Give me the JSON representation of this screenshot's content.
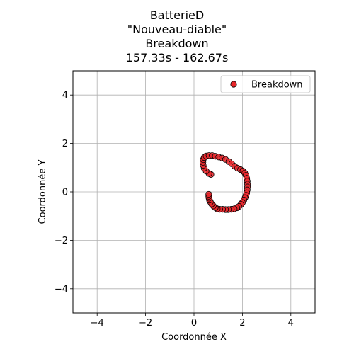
{
  "chart_data": {
    "type": "scatter",
    "title_lines": [
      "BatterieD",
      "\"Nouveau-diable\"",
      "Breakdown",
      "157.33s - 162.67s"
    ],
    "xlabel": "Coordonnée X",
    "ylabel": "Coordonnée Y",
    "xlim": [
      -5,
      5
    ],
    "ylim": [
      -5,
      5
    ],
    "xticks": [
      -4,
      -2,
      0,
      2,
      4
    ],
    "yticks": [
      -4,
      -2,
      0,
      2,
      4
    ],
    "xtick_labels": [
      "−4",
      "−2",
      "0",
      "2",
      "4"
    ],
    "ytick_labels": [
      "−4",
      "−2",
      "0",
      "2",
      "4"
    ],
    "grid": true,
    "legend_position": "top-right",
    "series": [
      {
        "name": "Breakdown",
        "color": "#e8262a",
        "edgecolor": "#000000",
        "points": [
          [
            0.7,
            0.72
          ],
          [
            0.62,
            0.76
          ],
          [
            0.5,
            0.86
          ],
          [
            0.42,
            0.98
          ],
          [
            0.38,
            1.1
          ],
          [
            0.37,
            1.22
          ],
          [
            0.38,
            1.33
          ],
          [
            0.42,
            1.42
          ],
          [
            0.5,
            1.48
          ],
          [
            0.62,
            1.5
          ],
          [
            0.75,
            1.5
          ],
          [
            0.88,
            1.47
          ],
          [
            1.02,
            1.44
          ],
          [
            1.16,
            1.4
          ],
          [
            1.3,
            1.34
          ],
          [
            1.44,
            1.25
          ],
          [
            1.56,
            1.16
          ],
          [
            1.68,
            1.06
          ],
          [
            1.8,
            0.98
          ],
          [
            1.92,
            0.92
          ],
          [
            2.02,
            0.86
          ],
          [
            2.1,
            0.78
          ],
          [
            2.15,
            0.68
          ],
          [
            2.18,
            0.56
          ],
          [
            2.2,
            0.44
          ],
          [
            2.21,
            0.32
          ],
          [
            2.21,
            0.2
          ],
          [
            2.2,
            0.08
          ],
          [
            2.18,
            -0.04
          ],
          [
            2.15,
            -0.14
          ],
          [
            2.11,
            -0.24
          ],
          [
            2.06,
            -0.34
          ],
          [
            2.0,
            -0.44
          ],
          [
            1.94,
            -0.52
          ],
          [
            1.86,
            -0.6
          ],
          [
            1.77,
            -0.66
          ],
          [
            1.66,
            -0.7
          ],
          [
            1.54,
            -0.72
          ],
          [
            1.42,
            -0.73
          ],
          [
            1.3,
            -0.73
          ],
          [
            1.18,
            -0.72
          ],
          [
            1.06,
            -0.72
          ],
          [
            0.96,
            -0.7
          ],
          [
            0.88,
            -0.65
          ],
          [
            0.8,
            -0.58
          ],
          [
            0.73,
            -0.5
          ],
          [
            0.68,
            -0.42
          ],
          [
            0.64,
            -0.34
          ],
          [
            0.62,
            -0.26
          ],
          [
            0.61,
            -0.18
          ],
          [
            0.61,
            -0.1
          ]
        ]
      }
    ]
  }
}
